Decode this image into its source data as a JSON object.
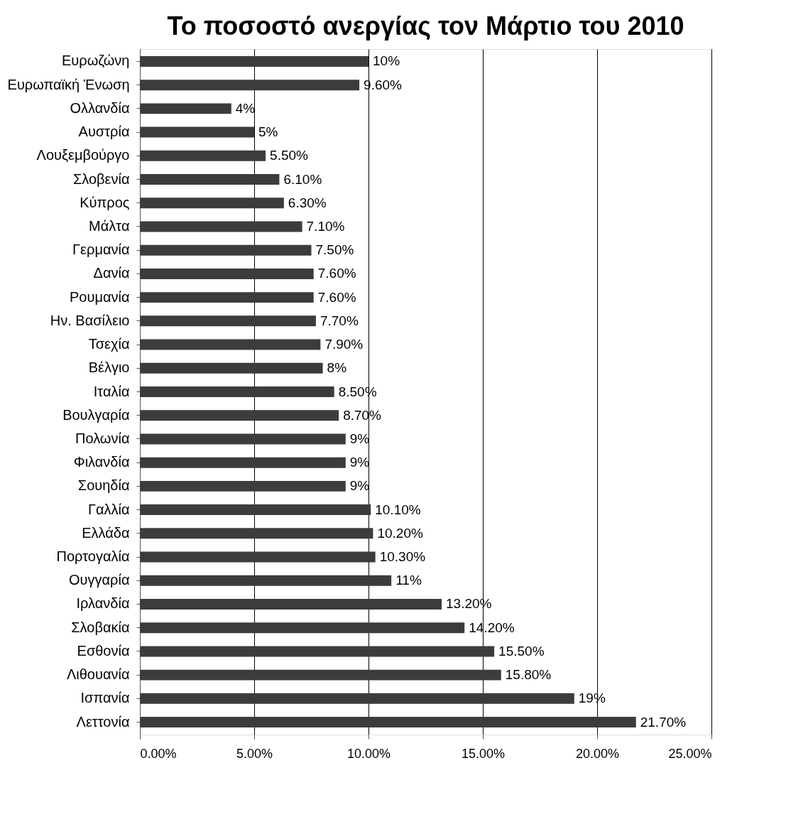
{
  "chart_data": {
    "type": "bar",
    "orientation": "horizontal",
    "title": "Το ποσοστό ανεργίας τον Μάρτιο του 2010",
    "categories": [
      "Ευρωζώνη",
      "Ευρωπαϊκή Ένωση",
      "Ολλανδία",
      "Αυστρία",
      "Λουξεμβούργο",
      "Σλοβενία",
      "Κύπρος",
      "Μάλτα",
      "Γερμανία",
      "Δανία",
      "Ρουμανία",
      "Ην. Βασίλειο",
      "Τσεχία",
      "Βέλγιο",
      "Ιταλία",
      "Βουλγαρία",
      "Πολωνία",
      "Φιλανδία",
      "Σουηδία",
      "Γαλλία",
      "Ελλάδα",
      "Πορτογαλία",
      "Ουγγαρία",
      "Ιρλανδία",
      "Σλοβακία",
      "Εσθονία",
      "Λιθουανία",
      "Ισπανία",
      "Λεττονία"
    ],
    "values": [
      10,
      9.6,
      4,
      5,
      5.5,
      6.1,
      6.3,
      7.1,
      7.5,
      7.6,
      7.6,
      7.7,
      7.9,
      8,
      8.5,
      8.7,
      9,
      9,
      9,
      10.1,
      10.2,
      10.3,
      11,
      13.2,
      14.2,
      15.5,
      15.8,
      19,
      21.7
    ],
    "value_labels": [
      "10%",
      "9.60%",
      "4%",
      "5%",
      "5.50%",
      "6.10%",
      "6.30%",
      "7.10%",
      "7.50%",
      "7.60%",
      "7.60%",
      "7.70%",
      "7.90%",
      "8%",
      "8.50%",
      "8.70%",
      "9%",
      "9%",
      "9%",
      "10.10%",
      "10.20%",
      "10.30%",
      "11%",
      "13.20%",
      "14.20%",
      "15.50%",
      "15.80%",
      "19%",
      "21.70%"
    ],
    "color": "#3c3c3c",
    "xlim": [
      0,
      25
    ],
    "xticks": [
      {
        "value": 0,
        "label": "0.00%"
      },
      {
        "value": 5,
        "label": "5.00%"
      },
      {
        "value": 10,
        "label": "10.00%"
      },
      {
        "value": 15,
        "label": "15.00%"
      },
      {
        "value": 20,
        "label": "20.00%"
      },
      {
        "value": 25,
        "label": "25.00%"
      }
    ],
    "grid": "x"
  }
}
